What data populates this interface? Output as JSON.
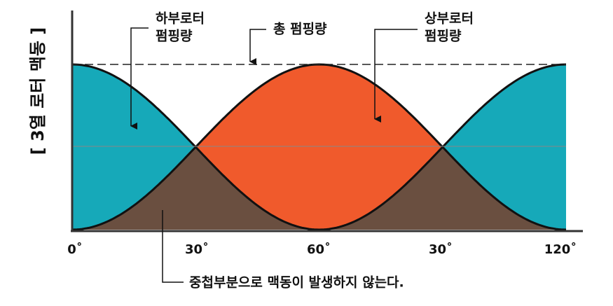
{
  "y_axis_label": "[ 3열 로터 맥동 ]",
  "x_labels": [
    "0˚",
    "30˚",
    "60˚",
    "30˚",
    "120˚"
  ],
  "callouts": {
    "lower_rotor": [
      "하부로터",
      "펌핑량"
    ],
    "total": "총 펌핑량",
    "upper_rotor": [
      "상부로터",
      "펌핑량"
    ]
  },
  "note": "중첩부분으로 맥동이 발생하지 않는다."
}
